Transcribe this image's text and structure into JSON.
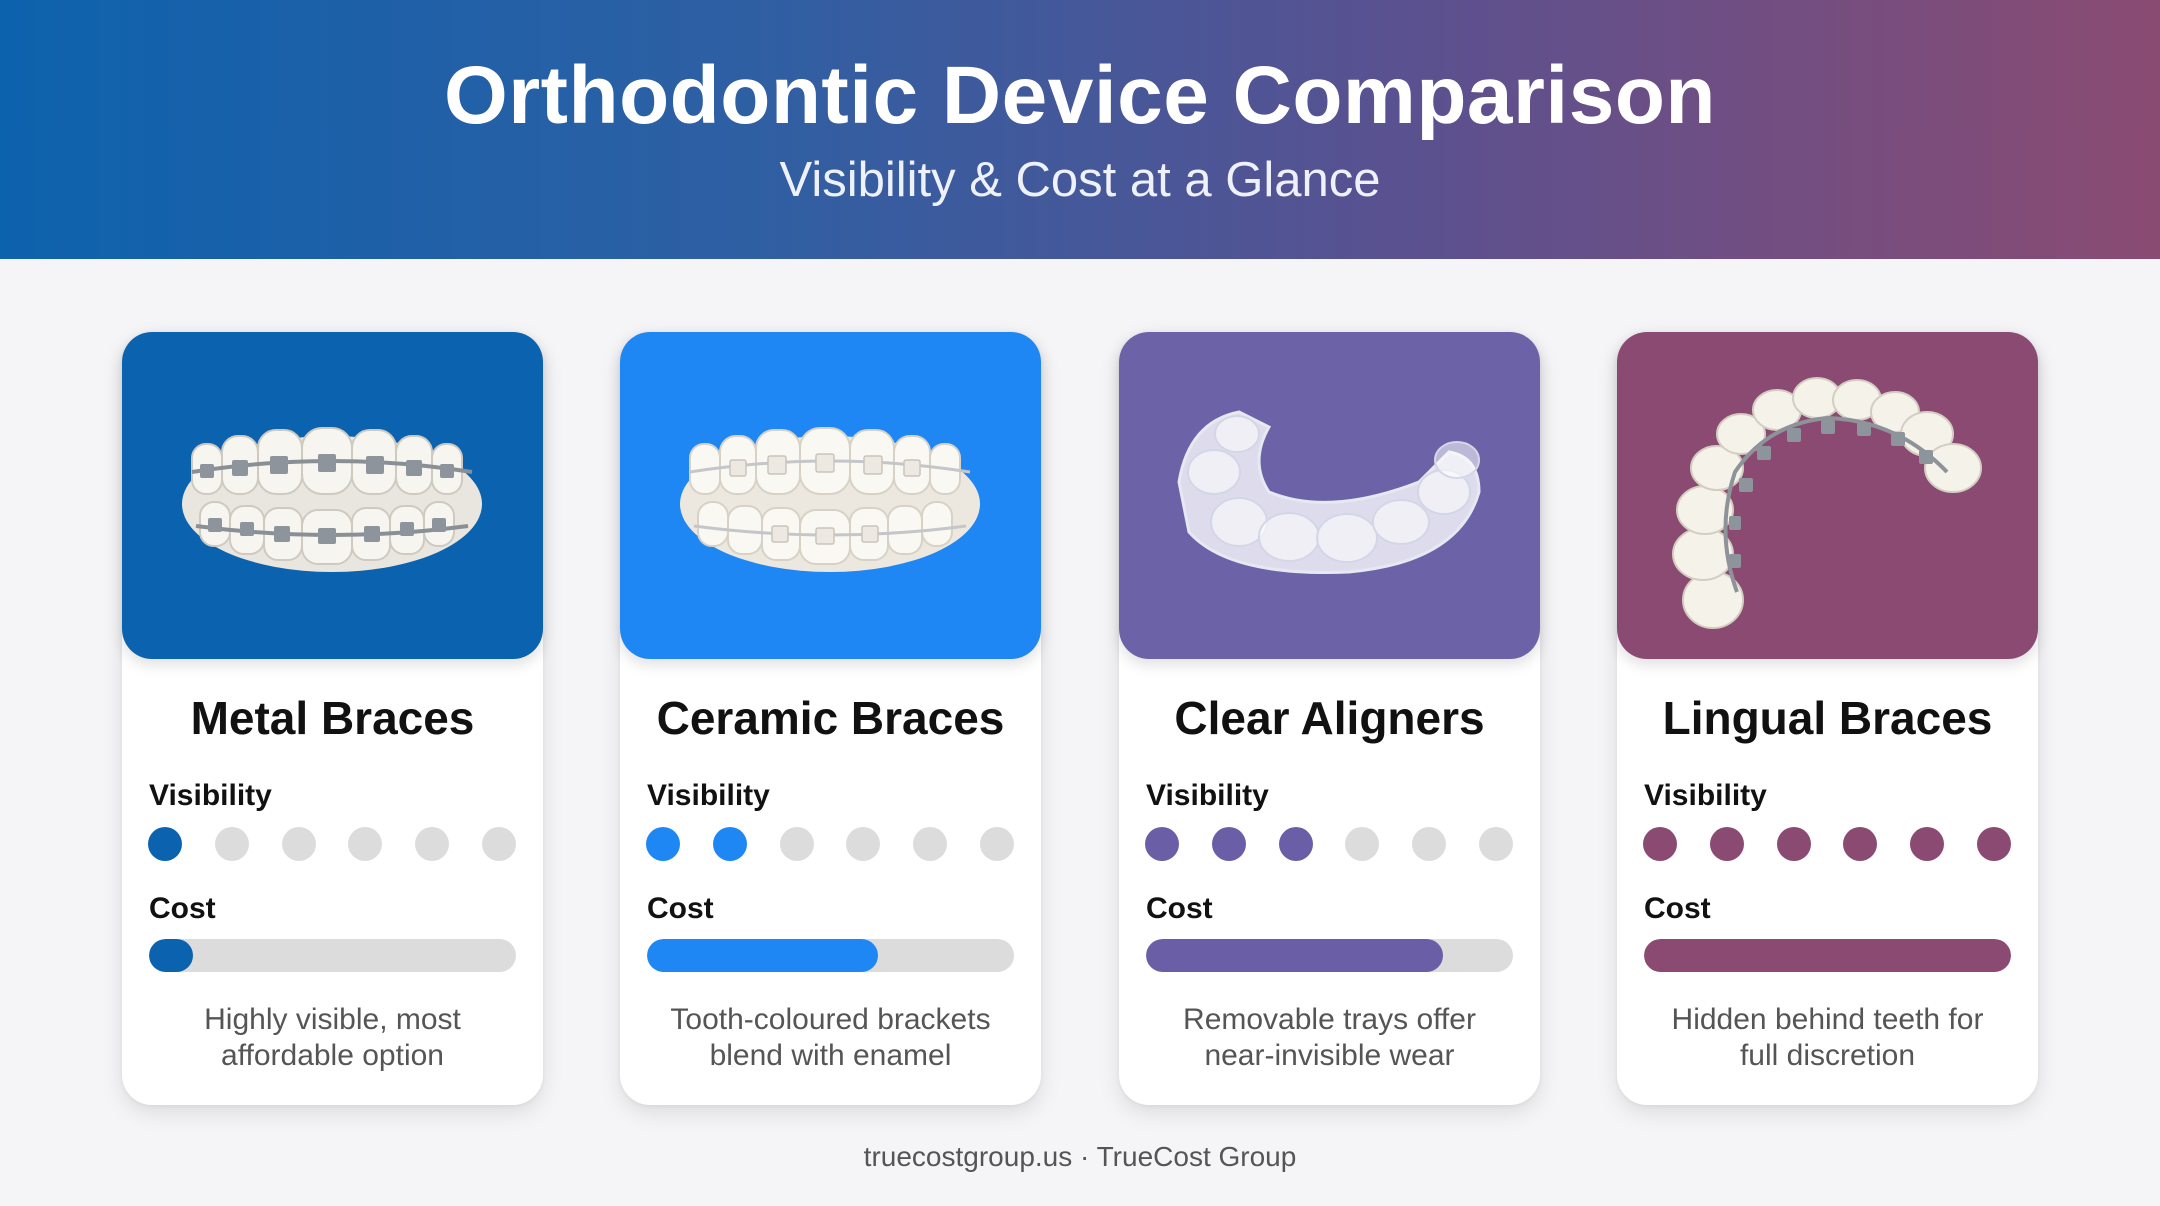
{
  "header": {
    "title": "Orthodontic Device Comparison",
    "subtitle": "Visibility & Cost at a Glance"
  },
  "labels": {
    "visibility": "Visibility",
    "cost": "Cost"
  },
  "visibility_scale_max": 6,
  "cards": [
    {
      "name": "Metal Braces",
      "visibility_level": 1,
      "cost_fraction": 0.12,
      "description_line1": "Highly visible, most",
      "description_line2": "affordable option",
      "color": "#0b63b0",
      "image_bg": "#0b63b0",
      "icon": "metal-braces-icon"
    },
    {
      "name": "Ceramic Braces",
      "visibility_level": 2,
      "cost_fraction": 0.63,
      "description_line1": "Tooth-coloured brackets",
      "description_line2": "blend with enamel",
      "color": "#1f87f3",
      "image_bg": "#1f87f3",
      "icon": "ceramic-braces-icon"
    },
    {
      "name": "Clear Aligners",
      "visibility_level": 3,
      "cost_fraction": 0.81,
      "description_line1": "Removable trays offer",
      "description_line2": "near-invisible wear",
      "color": "#6a5fa6",
      "image_bg": "#6b62a8",
      "icon": "clear-aligner-icon"
    },
    {
      "name": "Lingual Braces",
      "visibility_level": 6,
      "cost_fraction": 1.0,
      "description_line1": "Hidden behind teeth for",
      "description_line2": "full discretion",
      "color": "#8a4a72",
      "image_bg": "#8a4a72",
      "icon": "lingual-braces-icon"
    }
  ],
  "footer": "truecostgroup.us · TrueCost Group"
}
